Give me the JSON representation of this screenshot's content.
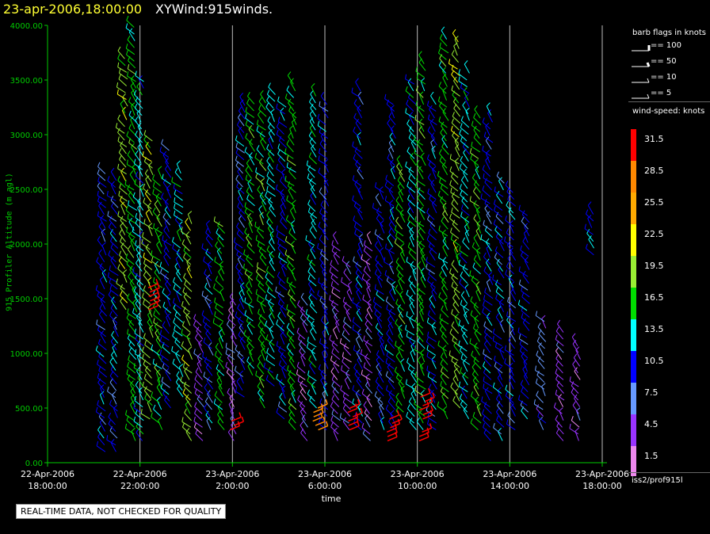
{
  "header": {
    "date_time": "23-apr-2006,18:00:00",
    "plot_name": "XYWind:915winds."
  },
  "notice": "REAL-TIME DATA, NOT CHECKED FOR QUALITY",
  "source": "iss2/prof915l",
  "colors": {
    "axis": "#00cc00",
    "gridline": "#bbbbbb",
    "text": "#ffffff",
    "title": "#ffff33"
  },
  "legend": {
    "barb_title": "barb flags in knots",
    "barb_items": [
      "== 100",
      "== 50",
      "== 10",
      "== 5"
    ],
    "speed_title": "wind-speed: knots",
    "speed_bins": [
      {
        "label": "31.5",
        "color": "#ff0000"
      },
      {
        "label": "28.5",
        "color": "#ff8800"
      },
      {
        "label": "25.5",
        "color": "#ffaa00"
      },
      {
        "label": "22.5",
        "color": "#ffff00"
      },
      {
        "label": "19.5",
        "color": "#99ee33"
      },
      {
        "label": "16.5",
        "color": "#00dd00"
      },
      {
        "label": "13.5",
        "color": "#00ffff"
      },
      {
        "label": "10.5",
        "color": "#0000ff"
      },
      {
        "label": "7.5",
        "color": "#6699ff"
      },
      {
        "label": "4.5",
        "color": "#9933ff"
      },
      {
        "label": "1.5",
        "color": "#ee88ee"
      }
    ]
  },
  "chart_data": {
    "type": "scatter",
    "title": "23-apr-2006,18:00:00 XYWind:915winds.",
    "xlabel": "time",
    "ylabel": "915 Profiler Altitude (m agl)",
    "ylim": [
      0,
      4000
    ],
    "xlim": [
      "22-Apr-2006 18:00:00",
      "23-Apr-2006 18:00:00"
    ],
    "grid": "vertical lines every 4 hours",
    "x_ticks": [
      [
        "22-Apr-2006",
        "18:00:00"
      ],
      [
        "22-Apr-2006",
        "22:00:00"
      ],
      [
        "23-Apr-2006",
        "2:00:00"
      ],
      [
        "23-Apr-2006",
        "6:00:00"
      ],
      [
        "23-Apr-2006",
        "10:00:00"
      ],
      [
        "23-Apr-2006",
        "14:00:00"
      ],
      [
        "23-Apr-2006",
        "18:00:00"
      ]
    ],
    "y_ticks": [
      "0.00",
      "500.00",
      "1000.00",
      "1500.00",
      "2000.00",
      "2500.00",
      "3000.00",
      "3500.00",
      "4000.00"
    ],
    "series_note": "wind barbs colored by wind speed (knots)",
    "barb_columns": [
      {
        "hour": 2.5,
        "alt_min": 100,
        "alt_max": 2700,
        "speed": 10.5
      },
      {
        "hour": 3.0,
        "alt_min": 100,
        "alt_max": 2600,
        "speed": 10.5
      },
      {
        "hour": 3.4,
        "alt_min": 1400,
        "alt_max": 3700,
        "speed": 19.5
      },
      {
        "hour": 3.8,
        "alt_min": 200,
        "alt_max": 4000,
        "speed": 16.5
      },
      {
        "hour": 4.1,
        "alt_min": 200,
        "alt_max": 3500,
        "speed": 13.5
      },
      {
        "hour": 4.5,
        "alt_min": 400,
        "alt_max": 3000,
        "speed": 19.5
      },
      {
        "hour": 4.9,
        "alt_min": 300,
        "alt_max": 2600,
        "speed": 16.5
      },
      {
        "hour": 5.3,
        "alt_min": 500,
        "alt_max": 2900,
        "speed": 10.5
      },
      {
        "hour": 5.8,
        "alt_min": 600,
        "alt_max": 2700,
        "speed": 13.5
      },
      {
        "hour": 6.2,
        "alt_min": 200,
        "alt_max": 2200,
        "speed": 19.5
      },
      {
        "hour": 6.7,
        "alt_min": 200,
        "alt_max": 1300,
        "speed": 4.5
      },
      {
        "hour": 7.1,
        "alt_min": 300,
        "alt_max": 2100,
        "speed": 10.5
      },
      {
        "hour": 7.6,
        "alt_min": 300,
        "alt_max": 2200,
        "speed": 16.5
      },
      {
        "hour": 8.1,
        "alt_min": 200,
        "alt_max": 1500,
        "speed": 4.5
      },
      {
        "hour": 8.5,
        "alt_min": 600,
        "alt_max": 3300,
        "speed": 10.5
      },
      {
        "hour": 8.9,
        "alt_min": 800,
        "alt_max": 3300,
        "speed": 16.5
      },
      {
        "hour": 9.4,
        "alt_min": 500,
        "alt_max": 3300,
        "speed": 16.5
      },
      {
        "hour": 9.8,
        "alt_min": 700,
        "alt_max": 3400,
        "speed": 13.5
      },
      {
        "hour": 10.3,
        "alt_min": 400,
        "alt_max": 3300,
        "speed": 10.5
      },
      {
        "hour": 10.7,
        "alt_min": 300,
        "alt_max": 3500,
        "speed": 16.5
      },
      {
        "hour": 11.2,
        "alt_min": 200,
        "alt_max": 1500,
        "speed": 4.5
      },
      {
        "hour": 11.6,
        "alt_min": 500,
        "alt_max": 3400,
        "speed": 13.5
      },
      {
        "hour": 12.1,
        "alt_min": 300,
        "alt_max": 3300,
        "speed": 10.5
      },
      {
        "hour": 12.6,
        "alt_min": 200,
        "alt_max": 2000,
        "speed": 4.5
      },
      {
        "hour": 13.1,
        "alt_min": 300,
        "alt_max": 1800,
        "speed": 4.5
      },
      {
        "hour": 13.6,
        "alt_min": 300,
        "alt_max": 3400,
        "speed": 10.5
      },
      {
        "hour": 14.0,
        "alt_min": 200,
        "alt_max": 2000,
        "speed": 4.5
      },
      {
        "hour": 14.5,
        "alt_min": 300,
        "alt_max": 2500,
        "speed": 10.5
      },
      {
        "hour": 15.0,
        "alt_min": 300,
        "alt_max": 3300,
        "speed": 10.5
      },
      {
        "hour": 15.4,
        "alt_min": 400,
        "alt_max": 2700,
        "speed": 16.5
      },
      {
        "hour": 15.9,
        "alt_min": 300,
        "alt_max": 3500,
        "speed": 13.5
      },
      {
        "hour": 16.3,
        "alt_min": 300,
        "alt_max": 3700,
        "speed": 16.5
      },
      {
        "hour": 16.8,
        "alt_min": 300,
        "alt_max": 3300,
        "speed": 10.5
      },
      {
        "hour": 17.3,
        "alt_min": 400,
        "alt_max": 3900,
        "speed": 16.5
      },
      {
        "hour": 17.8,
        "alt_min": 500,
        "alt_max": 3900,
        "speed": 19.5
      },
      {
        "hour": 18.2,
        "alt_min": 400,
        "alt_max": 3600,
        "speed": 13.5
      },
      {
        "hour": 18.7,
        "alt_min": 300,
        "alt_max": 3200,
        "speed": 16.5
      },
      {
        "hour": 19.2,
        "alt_min": 200,
        "alt_max": 3200,
        "speed": 10.5
      },
      {
        "hour": 19.7,
        "alt_min": 200,
        "alt_max": 2600,
        "speed": 10.5
      },
      {
        "hour": 20.2,
        "alt_min": 300,
        "alt_max": 2500,
        "speed": 10.5
      },
      {
        "hour": 20.8,
        "alt_min": 400,
        "alt_max": 2300,
        "speed": 10.5
      },
      {
        "hour": 21.5,
        "alt_min": 300,
        "alt_max": 1300,
        "speed": 7.5
      },
      {
        "hour": 22.3,
        "alt_min": 200,
        "alt_max": 1200,
        "speed": 4.5
      },
      {
        "hour": 23.0,
        "alt_min": 200,
        "alt_max": 1100,
        "speed": 4.5
      },
      {
        "hour": 23.6,
        "alt_min": 1900,
        "alt_max": 2300,
        "speed": 10.5
      }
    ],
    "strong_wind_patches": [
      {
        "hour": 4.4,
        "alt_min": 1400,
        "alt_max": 1600,
        "speed": 31.5
      },
      {
        "hour": 8.0,
        "alt_min": 300,
        "alt_max": 400,
        "speed": 31.5
      },
      {
        "hour": 11.6,
        "alt_min": 300,
        "alt_max": 500,
        "speed": 28.5
      },
      {
        "hour": 13.1,
        "alt_min": 300,
        "alt_max": 500,
        "speed": 31.5
      },
      {
        "hour": 14.8,
        "alt_min": 200,
        "alt_max": 400,
        "speed": 31.5
      },
      {
        "hour": 16.2,
        "alt_min": 400,
        "alt_max": 600,
        "speed": 31.5
      },
      {
        "hour": 16.2,
        "alt_min": 200,
        "alt_max": 300,
        "speed": 31.5
      }
    ]
  }
}
